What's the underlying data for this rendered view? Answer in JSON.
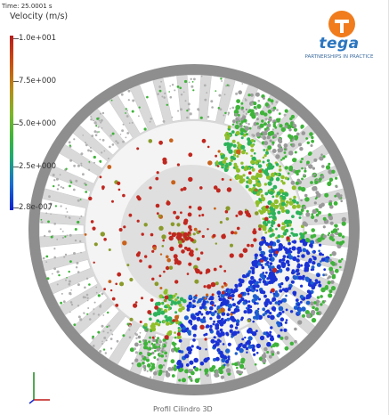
{
  "viewer": {
    "time_label": "Time: 25.0001 s",
    "legend_title": "Velocity (m/s)",
    "legend_ticks": [
      "1.0e+001",
      "7.5e+000",
      "5.0e+000",
      "2.5e+000",
      "2.8e-007"
    ],
    "bottom_label": "Profil Cilindro 3D"
  },
  "logo": {
    "name": "tega",
    "tagline": "PARTNERSHIPS IN PRACTICE",
    "colors": {
      "orange": "#f07c1d",
      "blue": "#2b76c0"
    }
  },
  "colors": {
    "shell": "#8e8e8e",
    "lifter": "#ffffff",
    "high_velocity": "#c0271f",
    "mid_velocity": "#3fb43a",
    "low_velocity": "#1a32d4"
  }
}
